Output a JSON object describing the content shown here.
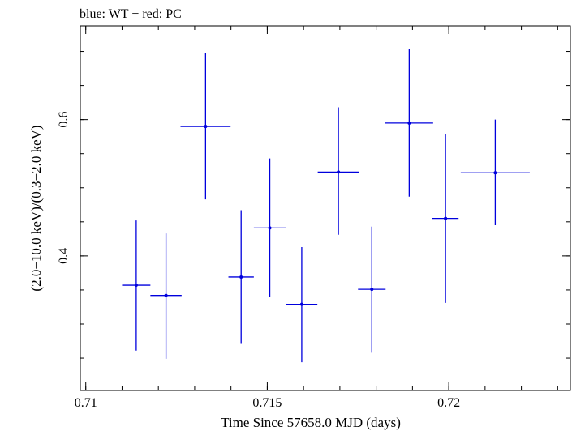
{
  "chart_data": {
    "type": "scatter",
    "title": "blue: WT − red: PC",
    "xlabel": "Time Since 57658.0 MJD (days)",
    "ylabel": "(2.0−10.0 keV)/(0.3−2.0 keV)",
    "xlim": [
      0.70985,
      0.72335
    ],
    "ylim": [
      0.2025,
      0.7375
    ],
    "x_ticks": [
      {
        "value": 0.71,
        "label": "0.71"
      },
      {
        "value": 0.715,
        "label": "0.715"
      },
      {
        "value": 0.72,
        "label": "0.72"
      }
    ],
    "y_ticks": [
      {
        "value": 0.4,
        "label": "0.4"
      },
      {
        "value": 0.6,
        "label": "0.6"
      }
    ],
    "grid": false,
    "series": [
      {
        "color": "#0000dd",
        "points": [
          {
            "x": 0.71139,
            "y": 0.357,
            "xerr": 0.00039,
            "ylo": 0.261,
            "yhi": 0.452
          },
          {
            "x": 0.71221,
            "y": 0.342,
            "xerr": 0.00043,
            "ylo": 0.249,
            "yhi": 0.433
          },
          {
            "x": 0.7133,
            "y": 0.59,
            "xerr": 0.00069,
            "ylo": 0.483,
            "yhi": 0.698
          },
          {
            "x": 0.71428,
            "y": 0.369,
            "xerr": 0.00035,
            "ylo": 0.272,
            "yhi": 0.467
          },
          {
            "x": 0.71507,
            "y": 0.441,
            "xerr": 0.00044,
            "ylo": 0.34,
            "yhi": 0.543
          },
          {
            "x": 0.71595,
            "y": 0.329,
            "xerr": 0.00043,
            "ylo": 0.244,
            "yhi": 0.413
          },
          {
            "x": 0.71696,
            "y": 0.523,
            "xerr": 0.00057,
            "ylo": 0.431,
            "yhi": 0.618
          },
          {
            "x": 0.71788,
            "y": 0.351,
            "xerr": 0.00038,
            "ylo": 0.258,
            "yhi": 0.443
          },
          {
            "x": 0.71891,
            "y": 0.595,
            "xerr": 0.00066,
            "ylo": 0.487,
            "yhi": 0.703
          },
          {
            "x": 0.71991,
            "y": 0.455,
            "xerr": 0.00036,
            "ylo": 0.331,
            "yhi": 0.579
          },
          {
            "x": 0.72128,
            "y": 0.522,
            "xerr": 0.00095,
            "ylo": 0.445,
            "yhi": 0.6
          }
        ]
      }
    ]
  }
}
